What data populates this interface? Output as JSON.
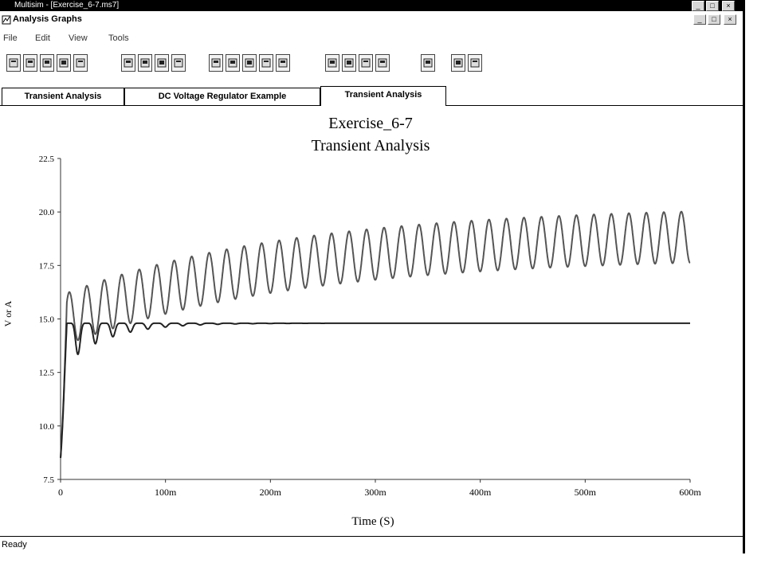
{
  "window": {
    "title": "Multisim - [Exercise_6-7.ms7]",
    "child_title": "Analysis Graphs",
    "controls": [
      "_",
      "□",
      "×"
    ]
  },
  "menu": [
    "File",
    "Edit",
    "View",
    "Tools"
  ],
  "toolbar": {
    "icons": [
      "new-icon",
      "open-icon",
      "save-icon",
      "print-icon",
      "print-preview-icon",
      "cut-icon",
      "copy-icon",
      "paste-icon",
      "undo-icon",
      "grid-icon",
      "legend-icon",
      "cursors-icon",
      "zoom-icon",
      "zoom-out-icon",
      "normalize-icon",
      "overlay-icon",
      "properties-icon",
      "export-icon",
      "trace-icon",
      "bar-chart-icon",
      "table-icon"
    ]
  },
  "tabs": [
    "Transient Analysis",
    "DC Voltage Regulator Example",
    "Transient Analysis"
  ],
  "active_tab": 2,
  "status": "Ready",
  "chart_data": {
    "type": "line",
    "title": "Exercise_6-7",
    "subtitle": "Transient Analysis",
    "xlabel": "Time (S)",
    "ylabel": "V or A",
    "xlim": [
      0,
      0.6
    ],
    "ylim": [
      7.5,
      22.5
    ],
    "xticks": [
      "0",
      "100m",
      "200m",
      "300m",
      "400m",
      "500m",
      "600m"
    ],
    "yticks": [
      "22.5",
      "20.0",
      "17.5",
      "15.0",
      "12.5",
      "10.0",
      "7.5"
    ],
    "grid": false,
    "series": [
      {
        "color": "#555555",
        "ripple_frequency_hz": 60,
        "peak_start": 16.1,
        "peak_end": 20.3,
        "trough_start": 13.7,
        "trough_end": 17.9,
        "initial_value": 8.5
      },
      {
        "color": "#222222",
        "settled_value": 14.8,
        "ripple_start": 2.2,
        "ripple_decay": 0.04,
        "initial_value": 8.5
      }
    ]
  }
}
